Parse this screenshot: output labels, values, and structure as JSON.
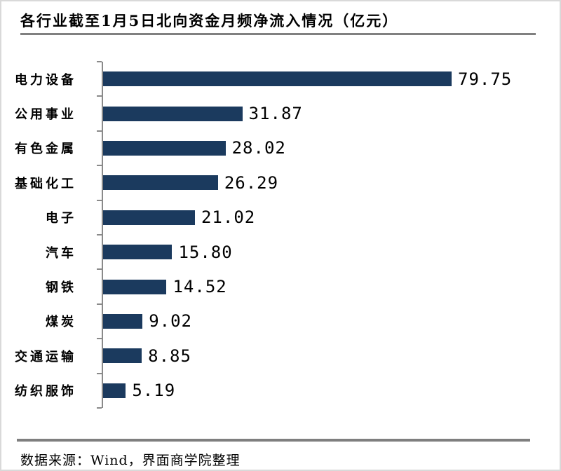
{
  "header": {
    "title": "各行业截至1月5日北向资金月频净流入情况（亿元）"
  },
  "footer": {
    "source_text": "数据来源：Wind，界面商学院整理"
  },
  "colors": {
    "bar": "#1b3a5e",
    "axis": "#8a8a8a",
    "title_rule": "#808080",
    "footer_rule": "#7f7f7f",
    "page_border": "#d9d9d9",
    "text": "#000000"
  },
  "chart_data": {
    "type": "bar",
    "orientation": "horizontal",
    "title": "各行业截至1月5日北向资金月频净流入情况（亿元）",
    "xlabel": "",
    "ylabel": "",
    "xlim": [
      0,
      80
    ],
    "grid": false,
    "legend": "none",
    "value_label_position": "end-of-bar",
    "categories": [
      "电力设备",
      "公用事业",
      "有色金属",
      "基础化工",
      "电子",
      "汽车",
      "钢铁",
      "煤炭",
      "交通运输",
      "纺织服饰"
    ],
    "values": [
      79.75,
      31.87,
      28.02,
      26.29,
      21.02,
      15.8,
      14.52,
      9.02,
      8.85,
      5.19
    ],
    "value_labels": [
      "79.75",
      "31.87",
      "28.02",
      "26.29",
      "21.02",
      "15.80",
      "14.52",
      "9.02",
      "8.85",
      "5.19"
    ]
  }
}
